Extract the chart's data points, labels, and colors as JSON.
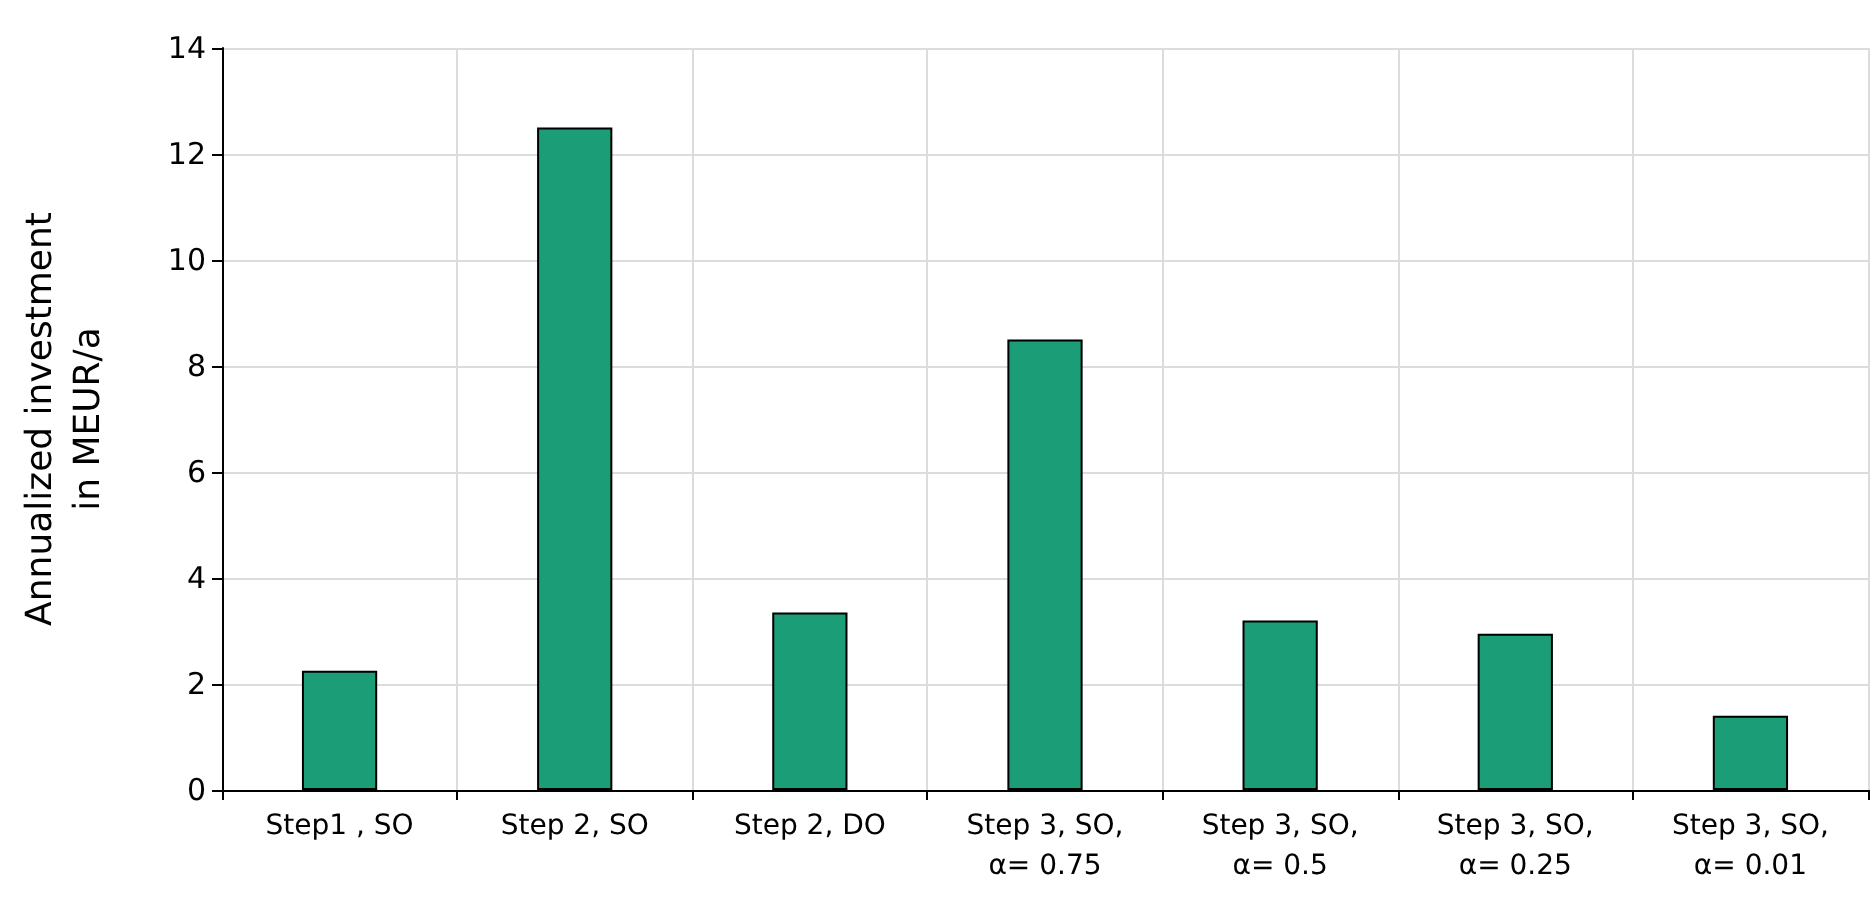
{
  "chart_data": {
    "type": "bar",
    "ylabel": "Annualized investment\nin MEUR/a",
    "categories": [
      "Step1 , SO",
      "Step 2, SO",
      "Step 2, DO",
      "Step 3, SO,\nα= 0.75",
      "Step 3, SO,\nα= 0.5",
      "Step 3, SO,\nα= 0.25",
      "Step 3, SO,\nα= 0.01"
    ],
    "values": [
      2.25,
      12.5,
      3.35,
      8.5,
      3.2,
      2.95,
      1.4
    ],
    "color": "#1b9e77",
    "ylim": [
      0,
      14
    ],
    "yticks": [
      0,
      2,
      4,
      6,
      8,
      10,
      12,
      14
    ],
    "grid": true
  }
}
